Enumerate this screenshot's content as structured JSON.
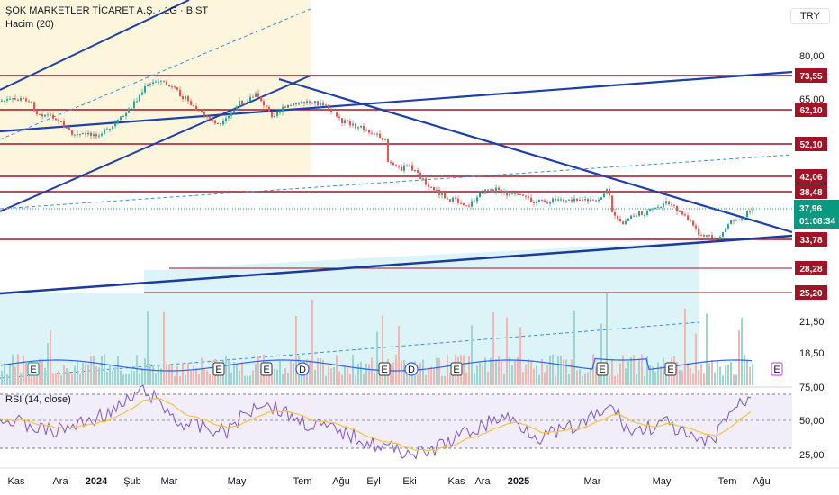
{
  "header": {
    "symbol_line": "ŞOK MARKETLER TİCARET A.Ş. · 1G · BIST",
    "volume_label": "Hacim (20)",
    "currency": "TRY"
  },
  "rsi": {
    "label": "RSI (14, close)",
    "levels": [
      "75,00",
      "50,00",
      "25,00"
    ]
  },
  "colors": {
    "up": "#26a69a",
    "down": "#ef5350",
    "trend": "#1e3fae",
    "resistance": "#a31326",
    "fill_yellow": "#fdf6dc",
    "fill_cyan": "#dcf4f8",
    "rsi_line": "#7e57c2",
    "rsi_ma": "#f5c242",
    "last_price_bg": "#089981"
  },
  "chart_data": {
    "type": "candlestick",
    "price_axis_ticks": [
      "80,00",
      "65,00",
      "21,50",
      "18,50"
    ],
    "price_levels": [
      "73,55",
      "62,10",
      "52,10",
      "42,06",
      "38,48",
      "33,78",
      "28,28",
      "25,20"
    ],
    "last_price": "37,96",
    "countdown": "01:08:34",
    "x_ticks": [
      "Kas",
      "Ara",
      "2024",
      "Şub",
      "Mar",
      "May",
      "Tem",
      "Ağu",
      "Eyl",
      "Eki",
      "Kas",
      "Ara",
      "2025",
      "Mar",
      "May",
      "Tem",
      "Ağu"
    ],
    "event_markers": [
      "E",
      "E",
      "E",
      "D",
      "E",
      "D",
      "E",
      "E",
      "E",
      "E"
    ]
  }
}
